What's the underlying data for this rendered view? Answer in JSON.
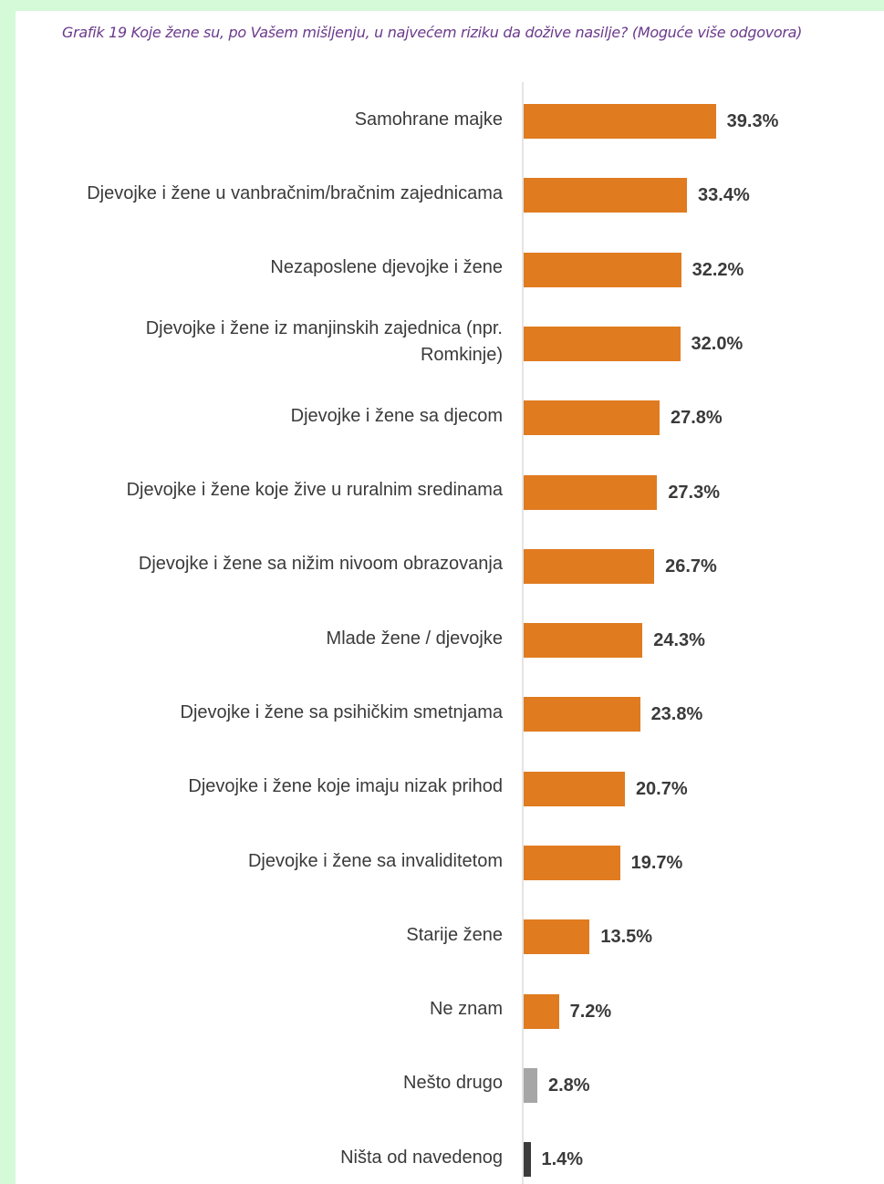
{
  "chart_data": {
    "type": "bar",
    "orientation": "horizontal",
    "title": "Grafik 19 Koje žene su, po Vašem mišljenju, u najvećem riziku da dožive nasilje? (Moguće više odgovora)",
    "xlabel": "",
    "ylabel": "",
    "categories": [
      "Samohrane majke",
      "Djevojke i žene u vanbračnim/bračnim zajednicama",
      "Nezaposlene djevojke i žene",
      "Djevojke i žene iz manjinskih zajednica (npr. Romkinje)",
      "Djevojke i žene sa djecom",
      "Djevojke i žene koje žive u ruralnim sredinama",
      "Djevojke i žene sa nižim nivoom obrazovanja",
      "Mlade žene / djevojke",
      "Djevojke i žene sa psihičkim smetnjama",
      "Djevojke i žene koje imaju nizak prihod",
      "Djevojke i žene sa invaliditetom",
      "Starije žene",
      "Ne znam",
      "Nešto drugo",
      "Ništa od navedenog"
    ],
    "values": [
      39.3,
      33.4,
      32.2,
      32.0,
      27.8,
      27.3,
      26.7,
      24.3,
      23.8,
      20.7,
      19.7,
      13.5,
      7.2,
      2.8,
      1.4
    ],
    "value_labels": [
      "39.3%",
      "33.4%",
      "32.2%",
      "32.0%",
      "27.8%",
      "27.3%",
      "26.7%",
      "24.3%",
      "23.8%",
      "20.7%",
      "19.7%",
      "13.5%",
      "7.2%",
      "2.8%",
      "1.4%"
    ],
    "bar_colors": [
      "#e07b20",
      "#e07b20",
      "#e07b20",
      "#e07b20",
      "#e07b20",
      "#e07b20",
      "#e07b20",
      "#e07b20",
      "#e07b20",
      "#e07b20",
      "#e07b20",
      "#e07b20",
      "#e07b20",
      "#a6a6a6",
      "#3b3b3b"
    ],
    "xlim": [
      0,
      40
    ],
    "grid": false,
    "legend": "none",
    "value_axis_visible": false
  }
}
